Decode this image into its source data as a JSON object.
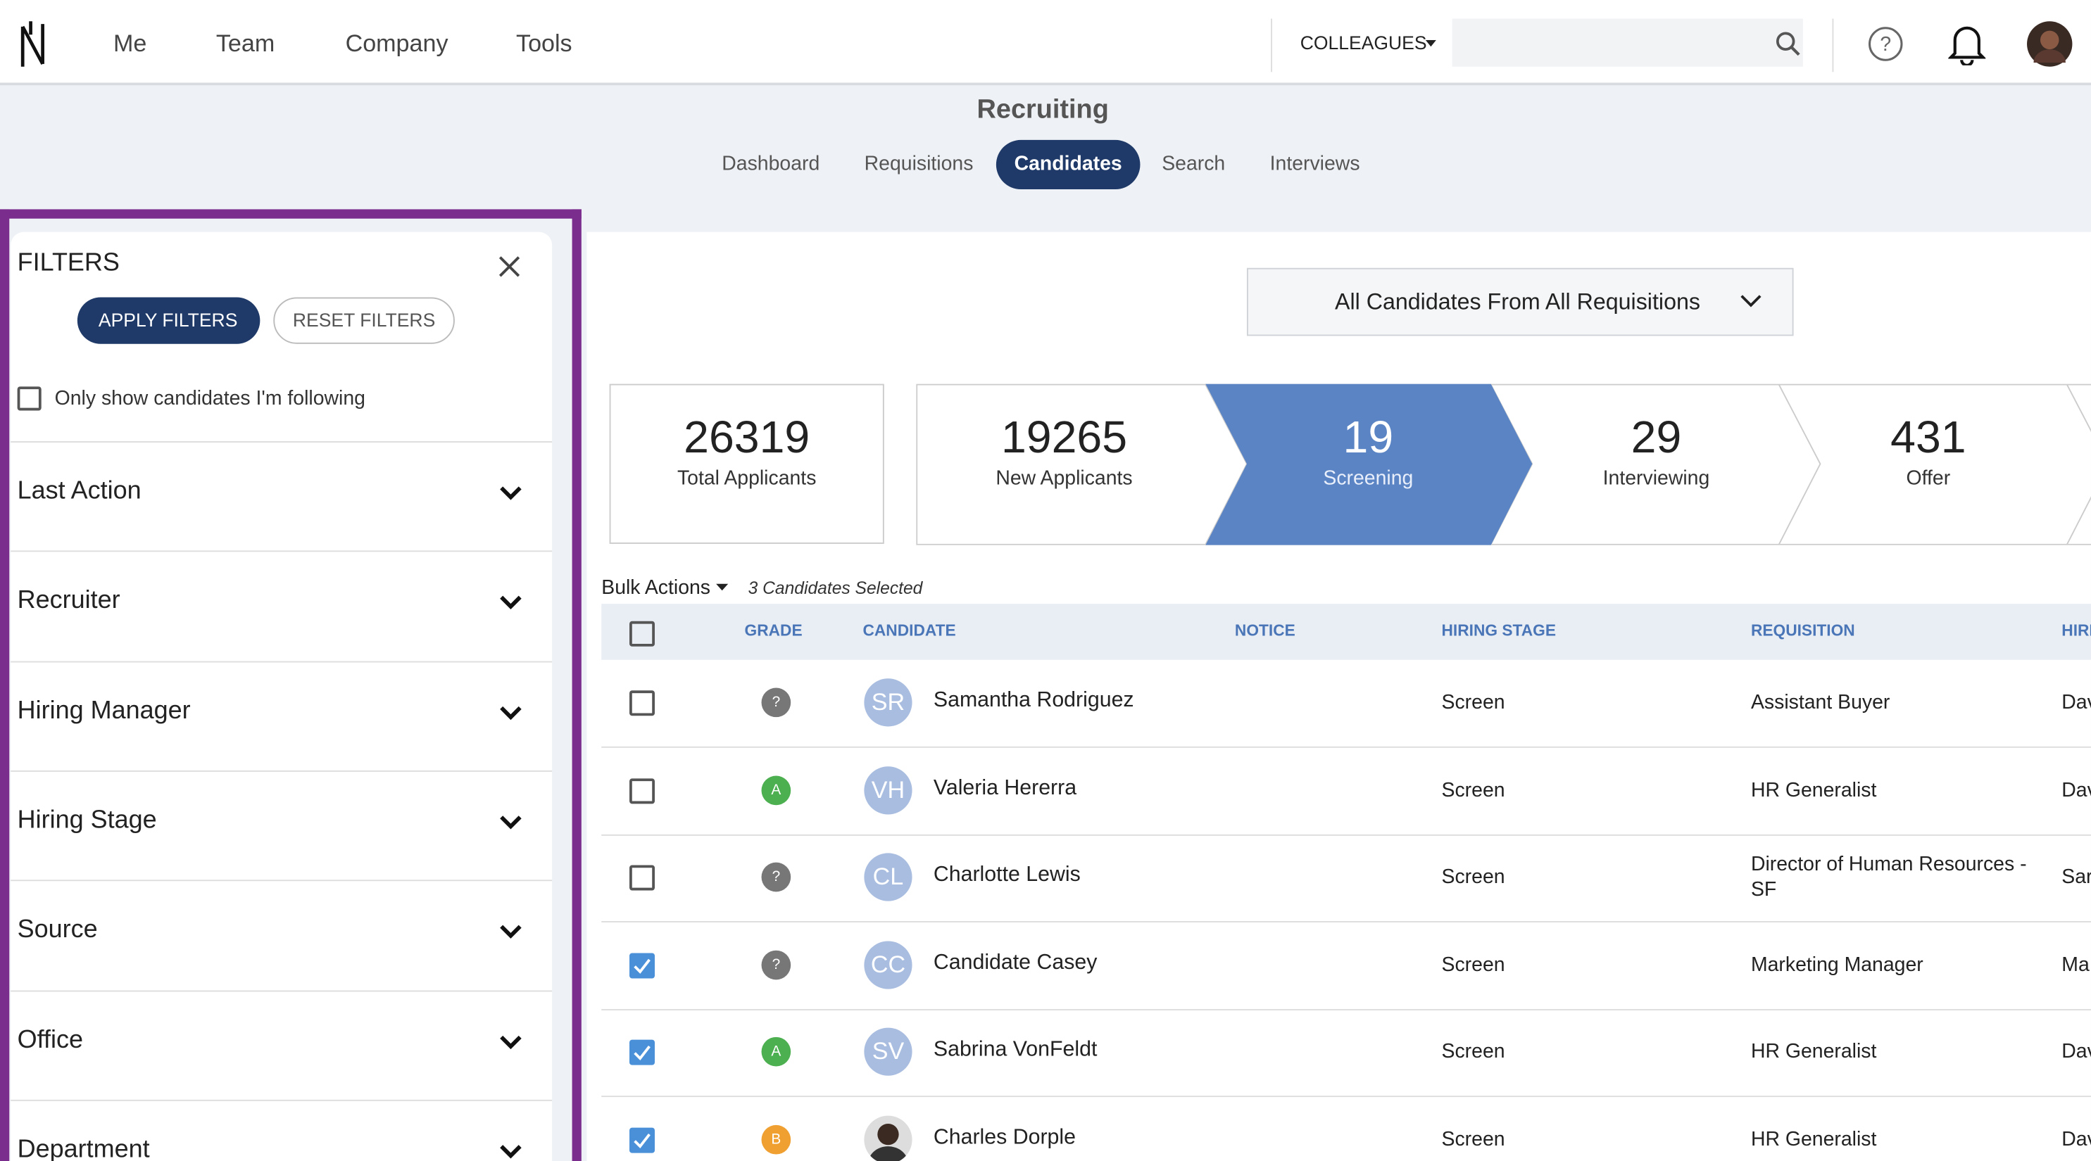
{
  "nav": {
    "items": [
      "Me",
      "Team",
      "Company",
      "Tools"
    ],
    "colleagues": "COLLEAGUES"
  },
  "header": {
    "title": "Recruiting",
    "tabs": [
      "Dashboard",
      "Requisitions",
      "Candidates",
      "Search",
      "Interviews"
    ],
    "active_tab": 2
  },
  "filters": {
    "title": "FILTERS",
    "apply": "APPLY FILTERS",
    "reset": "RESET FILTERS",
    "following": "Only show candidates I'm following",
    "sections": [
      "Last Action",
      "Recruiter",
      "Hiring Manager",
      "Hiring Stage",
      "Source",
      "Office",
      "Department"
    ]
  },
  "dropdown": "All Candidates From All Requisitions",
  "stats": [
    {
      "value": 26319,
      "label": "Total Applicants"
    },
    {
      "value": 19265,
      "label": "New Applicants"
    },
    {
      "value": 19,
      "label": "Screening"
    },
    {
      "value": 29,
      "label": "Interviewing"
    },
    {
      "value": 431,
      "label": "Offer"
    }
  ],
  "active_stat": 2,
  "bulk": {
    "label": "Bulk Actions",
    "selected": "3 Candidates Selected"
  },
  "table": {
    "columns": [
      "GRADE",
      "CANDIDATE",
      "NOTICE",
      "HIRING STAGE",
      "REQUISITION",
      "HIRI"
    ],
    "rows": [
      {
        "checked": false,
        "grade": "?",
        "initials": "SR",
        "name": "Samantha Rodriguez",
        "stage": "Screen",
        "requisition": "Assistant Buyer",
        "manager": "Dav"
      },
      {
        "checked": false,
        "grade": "A",
        "initials": "VH",
        "name": "Valeria Hererra",
        "stage": "Screen",
        "requisition": "HR Generalist",
        "manager": "Dav"
      },
      {
        "checked": false,
        "grade": "?",
        "initials": "CL",
        "name": "Charlotte Lewis",
        "stage": "Screen",
        "requisition": "Director of Human Resources - SF",
        "manager": "Sar"
      },
      {
        "checked": true,
        "grade": "?",
        "initials": "CC",
        "name": "Candidate Casey",
        "stage": "Screen",
        "requisition": "Marketing Manager",
        "manager": "Ma"
      },
      {
        "checked": true,
        "grade": "A",
        "initials": "SV",
        "name": "Sabrina VonFeldt",
        "stage": "Screen",
        "requisition": "HR Generalist",
        "manager": "Dav"
      },
      {
        "checked": true,
        "grade": "B",
        "initials": null,
        "name": "Charles Dorple",
        "stage": "Screen",
        "requisition": "HR Generalist",
        "manager": "Dav"
      }
    ]
  }
}
